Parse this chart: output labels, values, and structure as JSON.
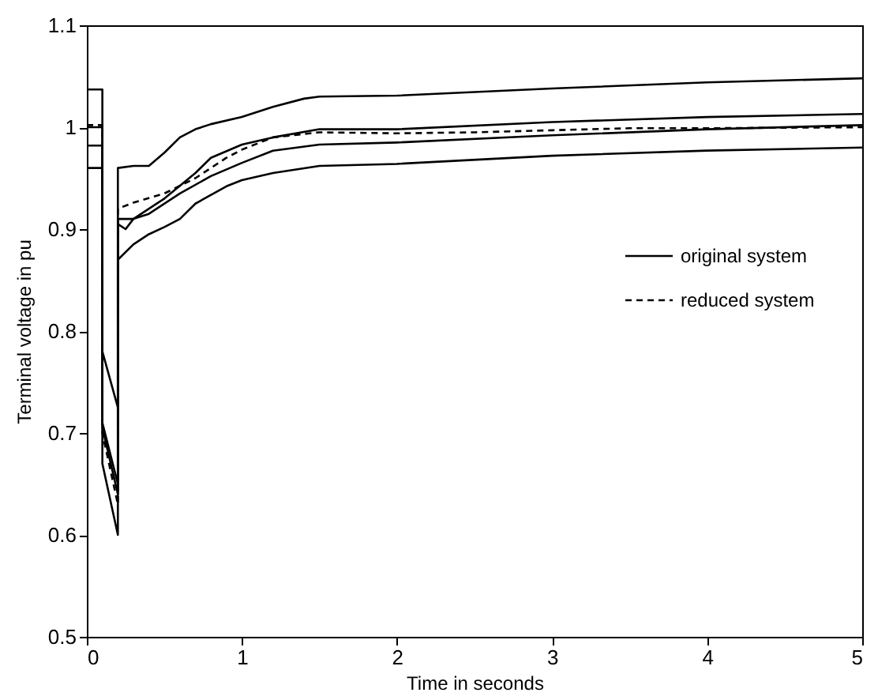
{
  "chart_data": {
    "type": "line",
    "xlabel": "Time in seconds",
    "ylabel": "Terminal voltage in pu",
    "xlim": [
      0,
      5
    ],
    "ylim": [
      0.5,
      1.1
    ],
    "xticks": [
      0,
      1,
      2,
      3,
      4,
      5
    ],
    "yticks": [
      0.5,
      0.6,
      0.7,
      0.8,
      0.9,
      {
        "value": 1,
        "label": "1"
      },
      1.1
    ],
    "grid": false,
    "legend": "right",
    "marker": "none",
    "series": [
      {
        "name": "original system",
        "color": "#000000",
        "line_style": "solid",
        "x": [
          0,
          0.1,
          0.1,
          0.2,
          0.2,
          0.3,
          0.4,
          0.5,
          0.6,
          0.7,
          0.8,
          1.0,
          1.2,
          1.4,
          1.5,
          2,
          3,
          4,
          5
        ],
        "values": [
          1.037,
          1.037,
          0.78,
          0.725,
          0.96,
          0.962,
          0.962,
          0.975,
          0.99,
          0.998,
          1.003,
          1.01,
          1.02,
          1.028,
          1.03,
          1.031,
          1.038,
          1.044,
          1.048
        ]
      },
      {
        "color": "#000000",
        "line_style": "solid",
        "x": [
          0,
          0.1,
          0.1,
          0.2,
          0.2,
          0.25,
          0.3,
          0.5,
          0.7,
          0.8,
          1.0,
          1.2,
          1.5,
          2,
          3,
          4,
          5
        ],
        "values": [
          1.0,
          1.0,
          0.71,
          0.65,
          0.905,
          0.9,
          0.91,
          0.93,
          0.955,
          0.97,
          0.983,
          0.99,
          0.998,
          0.998,
          1.005,
          1.01,
          1.013
        ]
      },
      {
        "color": "#000000",
        "line_style": "solid",
        "x": [
          0,
          0.1,
          0.1,
          0.2,
          0.2,
          0.3,
          0.4,
          0.6,
          0.8,
          1.0,
          1.2,
          1.5,
          2,
          3,
          4,
          5
        ],
        "values": [
          0.982,
          0.982,
          0.705,
          0.64,
          0.91,
          0.91,
          0.915,
          0.935,
          0.952,
          0.965,
          0.977,
          0.983,
          0.985,
          0.992,
          0.998,
          1.002
        ]
      },
      {
        "color": "#000000",
        "line_style": "solid",
        "x": [
          0,
          0.1,
          0.1,
          0.2,
          0.2,
          0.3,
          0.4,
          0.5,
          0.6,
          0.7,
          0.9,
          1.0,
          1.2,
          1.5,
          2,
          3,
          4,
          5
        ],
        "values": [
          0.96,
          0.96,
          0.67,
          0.6,
          0.87,
          0.885,
          0.895,
          0.902,
          0.91,
          0.925,
          0.942,
          0.948,
          0.955,
          0.962,
          0.964,
          0.972,
          0.977,
          0.98
        ]
      },
      {
        "name": "reduced system",
        "color": "#000000",
        "line_style": "dashed",
        "x": [
          0,
          0.1,
          0.1,
          0.2,
          0.2,
          0.3,
          0.5,
          0.7,
          0.9,
          1.0,
          1.2,
          1.5,
          2,
          2.5,
          3,
          3.5,
          4,
          5
        ],
        "values": [
          1.002,
          1.002,
          0.7,
          0.63,
          0.92,
          0.926,
          0.935,
          0.95,
          0.97,
          0.978,
          0.99,
          0.995,
          0.994,
          0.995,
          0.997,
          0.999,
          0.999,
          1.0
        ]
      }
    ]
  }
}
